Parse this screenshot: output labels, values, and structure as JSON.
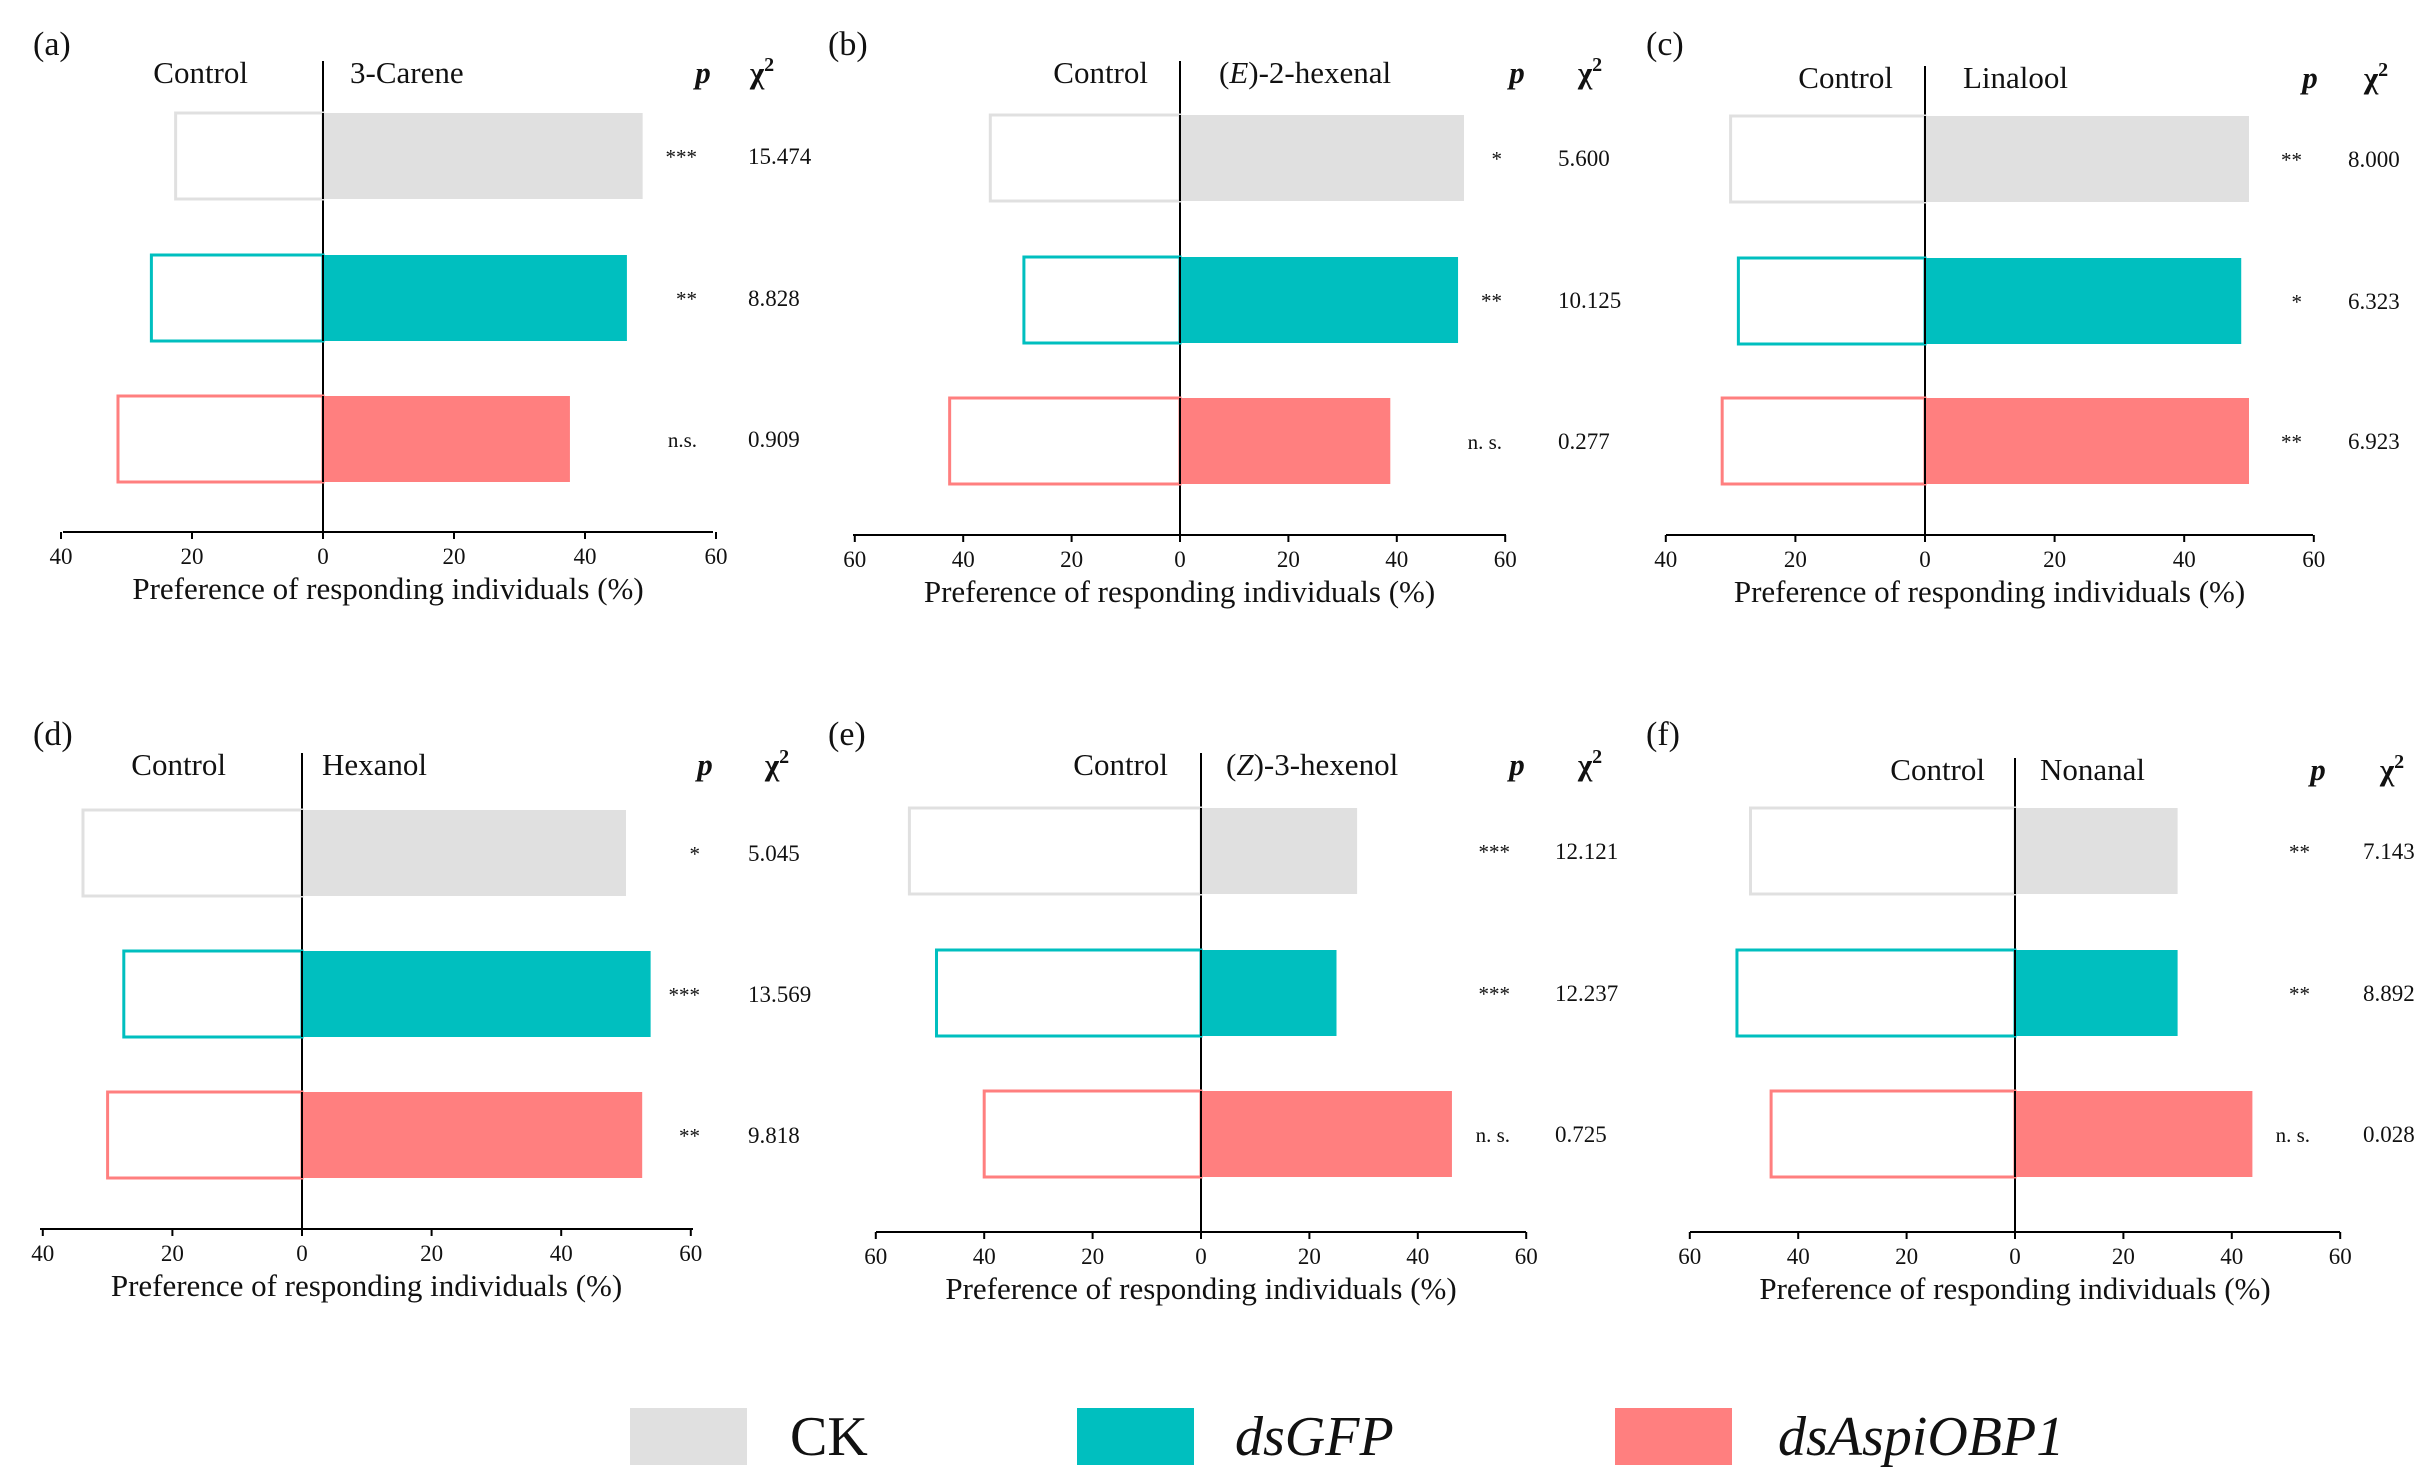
{
  "colors": {
    "CK": "#e0e0e0",
    "dsGFP": "#00bfbf",
    "dsAspiOBP1": "#ff7f7f",
    "axis": "#000000"
  },
  "header": {
    "p": "p",
    "chi": "χ",
    "chi_sup": "2"
  },
  "legend": [
    {
      "key": "CK",
      "label": "CK",
      "italic": false
    },
    {
      "key": "dsGFP",
      "label": "dsGFP",
      "italic": true
    },
    {
      "key": "dsAspiOBP1",
      "label": "dsAspiOBP1",
      "italic": true
    }
  ],
  "chart_data": [
    {
      "type": "bar",
      "panel": "(a)",
      "left_label": "Control",
      "compound": "3-Carene",
      "xlabel": "Preference of responding individuals (%)",
      "xlim": [
        -40,
        60
      ],
      "ticks": [
        -40,
        -20,
        0,
        20,
        40,
        60
      ],
      "tick_labels": [
        "40",
        "20",
        "0",
        "20",
        "40",
        "60"
      ],
      "series": [
        {
          "name": "CK",
          "control": 22.5,
          "treatment": 48.8,
          "sig": "***",
          "chi2": "15.474"
        },
        {
          "name": "dsGFP",
          "control": 26.2,
          "treatment": 46.4,
          "sig": "**",
          "chi2": "8.828"
        },
        {
          "name": "dsAspiOBP1",
          "control": 31.3,
          "treatment": 37.7,
          "sig": "n.s.",
          "chi2": "0.909"
        }
      ]
    },
    {
      "type": "bar",
      "panel": "(b)",
      "left_label": "Control",
      "compound_prefix": "(",
      "compound_italic": "E",
      "compound_suffix": ")-2-hexenal",
      "xlabel": "Preference of responding individuals (%)",
      "xlim": [
        -60,
        60
      ],
      "ticks": [
        -60,
        -40,
        -20,
        0,
        20,
        40,
        60
      ],
      "tick_labels": [
        "60",
        "40",
        "20",
        "0",
        "20",
        "40",
        "60"
      ],
      "series": [
        {
          "name": "CK",
          "control": 35.0,
          "treatment": 52.4,
          "sig": "*",
          "chi2": "5.600"
        },
        {
          "name": "dsGFP",
          "control": 28.8,
          "treatment": 51.3,
          "sig": "**",
          "chi2": "10.125"
        },
        {
          "name": "dsAspiOBP1",
          "control": 42.5,
          "treatment": 38.8,
          "sig": "n. s.",
          "chi2": "0.277"
        }
      ]
    },
    {
      "type": "bar",
      "panel": "(c)",
      "left_label": "Control",
      "compound": "Linalool",
      "xlabel": "Preference of responding individuals (%)",
      "xlim": [
        -40,
        60
      ],
      "ticks": [
        -40,
        -20,
        0,
        20,
        40,
        60
      ],
      "tick_labels": [
        "40",
        "20",
        "0",
        "20",
        "40",
        "60"
      ],
      "series": [
        {
          "name": "CK",
          "control": 30.0,
          "treatment": 50.0,
          "sig": "**",
          "chi2": "8.000"
        },
        {
          "name": "dsGFP",
          "control": 28.8,
          "treatment": 48.8,
          "sig": "*",
          "chi2": "6.323"
        },
        {
          "name": "dsAspiOBP1",
          "control": 31.3,
          "treatment": 50.0,
          "sig": "**",
          "chi2": "6.923"
        }
      ]
    },
    {
      "type": "bar",
      "panel": "(d)",
      "left_label": "Control",
      "compound": "Hexanol",
      "xlabel": "Preference of responding individuals (%)",
      "xlim": [
        -40,
        60
      ],
      "ticks": [
        -40,
        -20,
        0,
        20,
        40,
        60
      ],
      "tick_labels": [
        "40",
        "20",
        "0",
        "20",
        "40",
        "60"
      ],
      "series": [
        {
          "name": "CK",
          "control": 33.8,
          "treatment": 50.0,
          "sig": "*",
          "chi2": "5.045"
        },
        {
          "name": "dsGFP",
          "control": 27.5,
          "treatment": 53.8,
          "sig": "***",
          "chi2": "13.569"
        },
        {
          "name": "dsAspiOBP1",
          "control": 30.0,
          "treatment": 52.5,
          "sig": "**",
          "chi2": "9.818"
        }
      ]
    },
    {
      "type": "bar",
      "panel": "(e)",
      "left_label": "Control",
      "compound_prefix": "(",
      "compound_italic": "Z",
      "compound_suffix": ")-3-hexenol",
      "xlabel": "Preference of responding individuals (%)",
      "xlim": [
        -60,
        60
      ],
      "ticks": [
        -60,
        -40,
        -20,
        0,
        20,
        40,
        60
      ],
      "tick_labels": [
        "60",
        "40",
        "20",
        "0",
        "20",
        "40",
        "60"
      ],
      "series": [
        {
          "name": "CK",
          "control": 53.8,
          "treatment": 28.8,
          "sig": "***",
          "chi2": "12.121"
        },
        {
          "name": "dsGFP",
          "control": 48.8,
          "treatment": 25.0,
          "sig": "***",
          "chi2": "12.237"
        },
        {
          "name": "dsAspiOBP1",
          "control": 40.0,
          "treatment": 46.3,
          "sig": "n. s.",
          "chi2": "0.725"
        }
      ]
    },
    {
      "type": "bar",
      "panel": "(f)",
      "left_label": "Control",
      "compound": "Nonanal",
      "xlabel": "Preference of responding individuals (%)",
      "xlim": [
        -60,
        60
      ],
      "ticks": [
        -60,
        -40,
        -20,
        0,
        20,
        40,
        60
      ],
      "tick_labels": [
        "60",
        "40",
        "20",
        "0",
        "20",
        "40",
        "60"
      ],
      "series": [
        {
          "name": "CK",
          "control": 48.8,
          "treatment": 30.0,
          "sig": "**",
          "chi2": "7.143"
        },
        {
          "name": "dsGFP",
          "control": 51.3,
          "treatment": 30.0,
          "sig": "**",
          "chi2": "8.892"
        },
        {
          "name": "dsAspiOBP1",
          "control": 45.0,
          "treatment": 43.8,
          "sig": "n. s.",
          "chi2": "0.028"
        }
      ]
    }
  ]
}
